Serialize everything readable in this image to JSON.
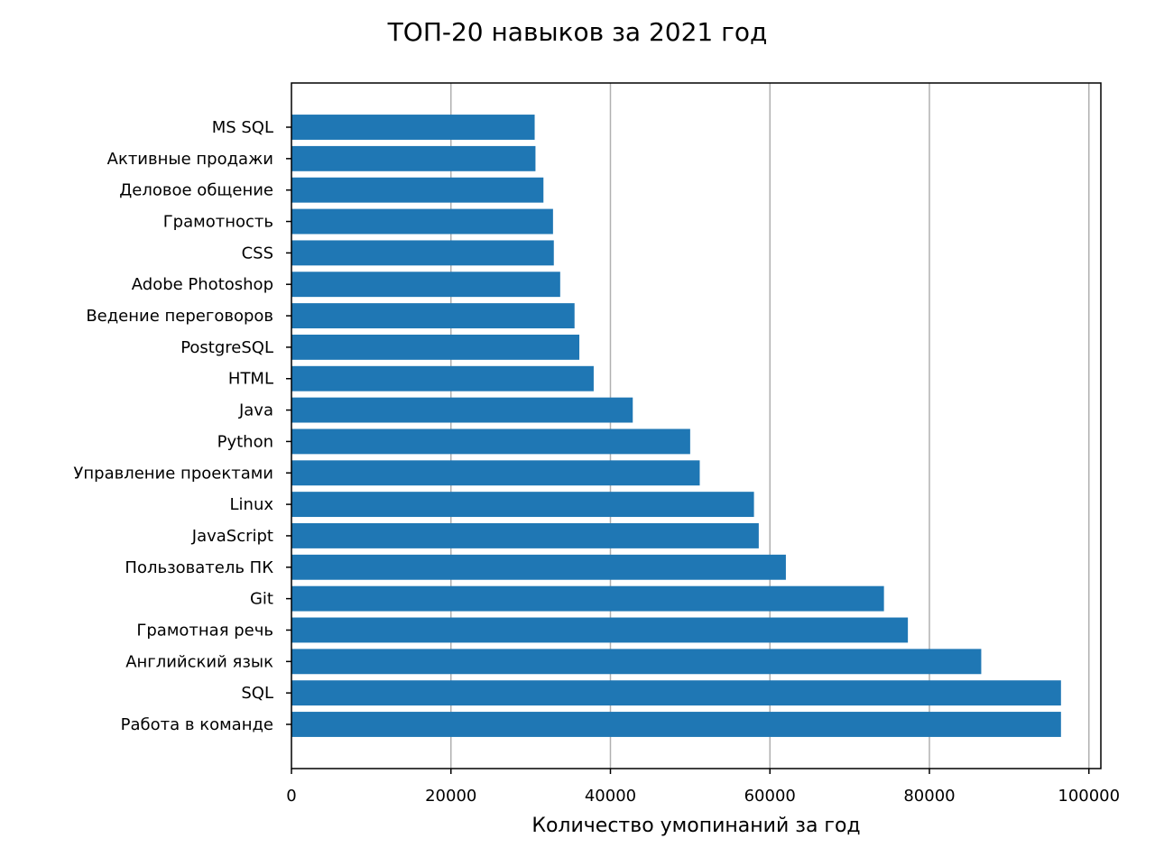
{
  "chart_data": {
    "type": "bar",
    "orientation": "horizontal",
    "title": "ТОП-20 навыков за 2021 год",
    "xlabel": "Количество умопинаний за год",
    "ylabel": "",
    "xlim": [
      0,
      101500
    ],
    "xticks": [
      0,
      20000,
      40000,
      60000,
      80000,
      100000
    ],
    "xtick_labels": [
      "0",
      "20000",
      "40000",
      "60000",
      "80000",
      "100000"
    ],
    "grid": "x-axis vertical lines",
    "bar_color": "#1f77b4",
    "grid_color": "#b0b0b0",
    "categories": [
      "Работа в команде",
      "SQL",
      "Английский язык",
      "Грамотная речь",
      "Git",
      "Пользователь ПК",
      "JavaScript",
      "Linux",
      "Управление проектами",
      "Python",
      "Java",
      "HTML",
      "PostgreSQL",
      "Ведение переговоров",
      "Adobe Photoshop",
      "CSS",
      "Грамотность",
      "Деловое общение",
      "Активные продажи",
      "MS SQL"
    ],
    "values": [
      96500,
      96500,
      86500,
      77300,
      74300,
      62000,
      58600,
      58000,
      51200,
      50000,
      42800,
      37900,
      36100,
      35500,
      33700,
      32900,
      32800,
      31600,
      30600,
      30500
    ]
  }
}
